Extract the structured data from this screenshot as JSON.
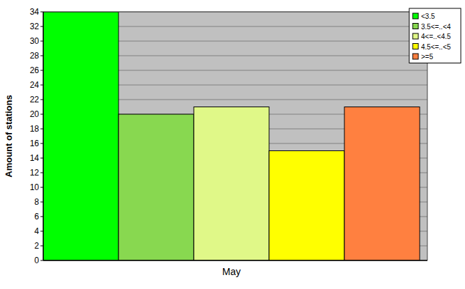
{
  "chart_data": {
    "type": "bar",
    "ylabel": "Amount of stations",
    "categories": [
      "May"
    ],
    "series": [
      {
        "name": "<3.5",
        "color": "#00ff00",
        "values": [
          34
        ]
      },
      {
        "name": "3.5<=..<4",
        "color": "#88d850",
        "values": [
          20
        ]
      },
      {
        "name": "4<=..<4.5",
        "color": "#e0f888",
        "values": [
          21
        ]
      },
      {
        "name": "4.5<=..<5",
        "color": "#ffff00",
        "values": [
          15
        ]
      },
      {
        "name": ">=5",
        "color": "#ff8040",
        "values": [
          21
        ]
      }
    ],
    "ylim": [
      0,
      34
    ],
    "yticks": [
      0,
      2,
      4,
      6,
      8,
      10,
      12,
      14,
      16,
      18,
      20,
      22,
      24,
      26,
      28,
      30,
      32,
      34
    ],
    "grid": true,
    "legend": "upper right"
  }
}
